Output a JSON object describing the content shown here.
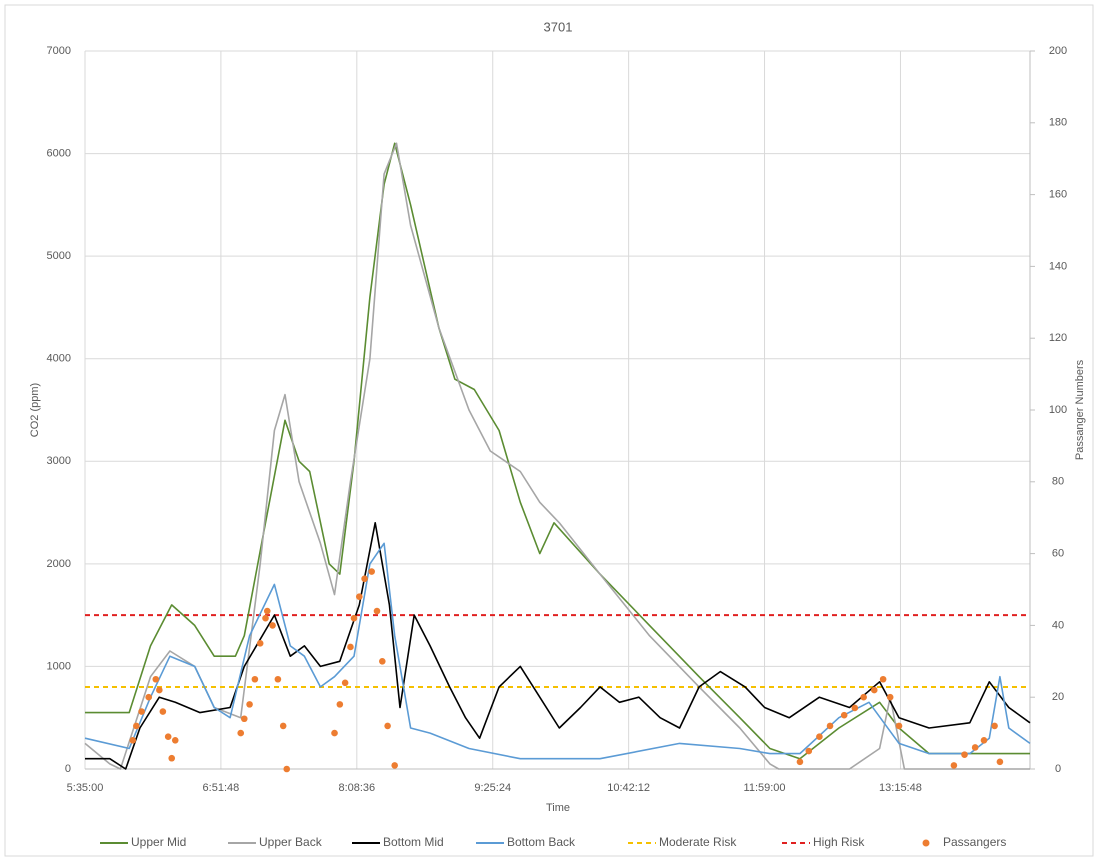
{
  "chart_data": {
    "type": "line",
    "title": "3701",
    "x_label": "Time",
    "y_label": "CO2 (ppm)",
    "y2_label": "Passanger Numbers",
    "xlim": [
      335,
      869
    ],
    "xticks": [
      {
        "value": 335,
        "label": "5:35:00"
      },
      {
        "value": 411.8,
        "label": "6:51:48"
      },
      {
        "value": 488.6,
        "label": "8:08:36"
      },
      {
        "value": 565.4,
        "label": "9:25:24"
      },
      {
        "value": 642.2,
        "label": "10:42:12"
      },
      {
        "value": 719,
        "label": "11:59:00"
      },
      {
        "value": 795.8,
        "label": "13:15:48"
      }
    ],
    "ylim": [
      0,
      7000
    ],
    "yticks": [
      0,
      1000,
      2000,
      3000,
      4000,
      5000,
      6000,
      7000
    ],
    "y2lim": [
      0,
      200
    ],
    "y2ticks": [
      0,
      20,
      40,
      60,
      80,
      100,
      120,
      140,
      160,
      180,
      200
    ],
    "grid": true,
    "legend": "bottom",
    "series": [
      {
        "name": "Upper Mid",
        "color": "#5b8c32",
        "x": [
          335,
          360,
          372,
          384,
          397,
          408,
          420,
          425,
          437,
          448,
          456,
          462,
          473,
          479,
          487,
          496,
          504,
          510,
          519,
          535,
          544,
          555,
          569,
          581,
          592,
          600,
          626,
          654,
          682,
          705,
          722,
          739,
          761,
          784,
          795,
          812,
          846,
          869
        ],
        "values": [
          550,
          550,
          1200,
          1600,
          1400,
          1100,
          1100,
          1300,
          2400,
          3400,
          3000,
          2900,
          2000,
          1900,
          3000,
          4600,
          5700,
          6100,
          5500,
          4300,
          3800,
          3700,
          3300,
          2600,
          2100,
          2400,
          1900,
          1400,
          900,
          500,
          200,
          100,
          400,
          650,
          400,
          150,
          150,
          150
        ]
      },
      {
        "name": "Upper Back",
        "color": "#a6a6a6",
        "x": [
          335,
          349,
          355,
          372,
          383,
          397,
          408,
          423,
          434,
          442,
          448,
          456,
          468,
          476,
          485,
          496,
          504,
          511,
          519,
          535,
          552,
          564,
          581,
          592,
          603,
          626,
          654,
          682,
          705,
          722,
          727,
          767,
          784,
          790,
          798,
          869
        ],
        "values": [
          250,
          50,
          0,
          900,
          1150,
          1000,
          600,
          500,
          2000,
          3300,
          3650,
          2800,
          2200,
          1700,
          2800,
          4000,
          5800,
          6100,
          5300,
          4300,
          3500,
          3100,
          2900,
          2600,
          2400,
          1900,
          1300,
          800,
          400,
          50,
          0,
          0,
          200,
          700,
          0,
          0
        ]
      },
      {
        "name": "Bottom Mid",
        "color": "#000000",
        "x": [
          335,
          349,
          358,
          366,
          377,
          386,
          400,
          417,
          425,
          442,
          451,
          459,
          468,
          479,
          490,
          499,
          507,
          513,
          521,
          530,
          541,
          550,
          558,
          569,
          581,
          592,
          603,
          615,
          626,
          637,
          648,
          660,
          671,
          682,
          694,
          708,
          719,
          733,
          750,
          767,
          784,
          795,
          812,
          835,
          846,
          857,
          869
        ],
        "values": [
          100,
          100,
          0,
          400,
          700,
          650,
          550,
          600,
          1000,
          1500,
          1100,
          1200,
          1000,
          1050,
          1600,
          2400,
          1600,
          600,
          1500,
          1200,
          800,
          500,
          300,
          800,
          1000,
          700,
          400,
          600,
          800,
          650,
          700,
          500,
          400,
          800,
          950,
          800,
          600,
          500,
          700,
          600,
          850,
          500,
          400,
          450,
          850,
          600,
          450
        ]
      },
      {
        "name": "Bottom Back",
        "color": "#5b9bd5",
        "x": [
          335,
          360,
          372,
          383,
          397,
          408,
          417,
          428,
          442,
          451,
          459,
          468,
          476,
          487,
          496,
          504,
          510,
          519,
          530,
          552,
          581,
          626,
          671,
          705,
          722,
          739,
          761,
          778,
          795,
          812,
          835,
          846,
          852,
          857,
          869
        ],
        "values": [
          300,
          200,
          700,
          1100,
          1000,
          600,
          500,
          1300,
          1800,
          1200,
          1100,
          800,
          900,
          1100,
          2000,
          2200,
          1300,
          400,
          350,
          200,
          100,
          100,
          250,
          200,
          150,
          150,
          500,
          650,
          250,
          150,
          150,
          300,
          900,
          400,
          250
        ]
      }
    ],
    "reference_lines": [
      {
        "name": "Moderate Risk",
        "color": "#f5c000",
        "value": 800
      },
      {
        "name": "High Risk",
        "color": "#e02020",
        "value": 1500
      }
    ],
    "scatter": {
      "name": "Passangers",
      "color": "#ed7d31",
      "axis": "y2",
      "x": [
        362,
        364,
        367,
        371,
        375,
        377,
        379,
        382,
        384,
        386,
        423,
        425,
        428,
        431,
        434,
        437,
        438,
        441,
        444,
        447,
        449,
        476,
        479,
        482,
        485,
        487,
        490,
        493,
        497,
        500,
        503,
        506,
        510,
        739,
        744,
        750,
        756,
        764,
        770,
        775,
        781,
        786,
        790,
        795,
        826,
        832,
        838,
        843,
        849,
        852
      ],
      "values": [
        8,
        12,
        16,
        20,
        25,
        22,
        16,
        9,
        3,
        8,
        10,
        14,
        18,
        25,
        35,
        42,
        44,
        40,
        25,
        12,
        0,
        10,
        18,
        24,
        34,
        42,
        48,
        53,
        55,
        44,
        30,
        12,
        1,
        2,
        5,
        9,
        12,
        15,
        17,
        20,
        22,
        25,
        20,
        12,
        1,
        4,
        6,
        8,
        12,
        2
      ]
    }
  }
}
